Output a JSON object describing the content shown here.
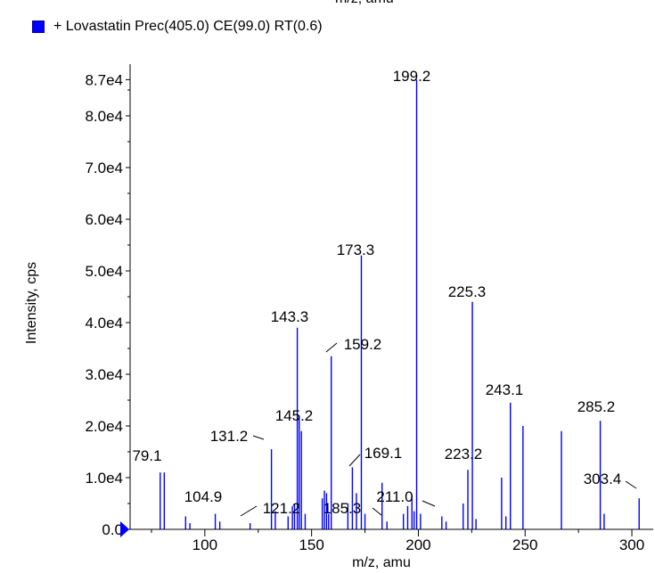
{
  "header_cut_label": "m/z, amu",
  "legend": {
    "label": "+ Lovastatin Prec(405.0) CE(99.0) RT(0.6)",
    "color": "#0000ff"
  },
  "chart_data": {
    "type": "bar",
    "title": "",
    "xlabel": "m/z, amu",
    "ylabel": "Intensity, cps",
    "xlim": [
      65,
      310
    ],
    "ylim": [
      0,
      90000
    ],
    "x_ticks": [
      100,
      150,
      200,
      250,
      300
    ],
    "y_tick_labels": [
      "0.0",
      "1.0e4",
      "2.0e4",
      "3.0e4",
      "4.0e4",
      "5.0e4",
      "6.0e4",
      "7.0e4",
      "8.0e4",
      "8.7e4"
    ],
    "y_tick_values": [
      0,
      10000,
      20000,
      30000,
      40000,
      50000,
      60000,
      70000,
      80000,
      87000
    ],
    "series": [
      {
        "color": "#0000ff",
        "peaks": [
          {
            "x": 79.1,
            "y": 11000
          },
          {
            "x": 81.0,
            "y": 11000
          },
          {
            "x": 91.0,
            "y": 2500
          },
          {
            "x": 93.0,
            "y": 1200
          },
          {
            "x": 104.9,
            "y": 3000
          },
          {
            "x": 107.0,
            "y": 1500
          },
          {
            "x": 121.2,
            "y": 1200
          },
          {
            "x": 131.2,
            "y": 15500
          },
          {
            "x": 133.0,
            "y": 3500
          },
          {
            "x": 139.0,
            "y": 2500
          },
          {
            "x": 141.0,
            "y": 4500
          },
          {
            "x": 142.0,
            "y": 5000
          },
          {
            "x": 143.3,
            "y": 39000
          },
          {
            "x": 144.2,
            "y": 22000
          },
          {
            "x": 145.2,
            "y": 19000
          },
          {
            "x": 147.0,
            "y": 3000
          },
          {
            "x": 155.0,
            "y": 6000
          },
          {
            "x": 156.0,
            "y": 7500
          },
          {
            "x": 157.0,
            "y": 7000
          },
          {
            "x": 158.0,
            "y": 3000
          },
          {
            "x": 159.2,
            "y": 33500
          },
          {
            "x": 167.0,
            "y": 5000
          },
          {
            "x": 169.1,
            "y": 12000
          },
          {
            "x": 171.0,
            "y": 7000
          },
          {
            "x": 173.3,
            "y": 53000
          },
          {
            "x": 175.0,
            "y": 3000
          },
          {
            "x": 183.0,
            "y": 9000
          },
          {
            "x": 185.3,
            "y": 1500
          },
          {
            "x": 193.0,
            "y": 3000
          },
          {
            "x": 195.0,
            "y": 4500
          },
          {
            "x": 197.0,
            "y": 6500
          },
          {
            "x": 198.0,
            "y": 3500
          },
          {
            "x": 199.2,
            "y": 87000
          },
          {
            "x": 201.0,
            "y": 3000
          },
          {
            "x": 211.0,
            "y": 2500
          },
          {
            "x": 213.0,
            "y": 1500
          },
          {
            "x": 221.0,
            "y": 5000
          },
          {
            "x": 223.2,
            "y": 11500
          },
          {
            "x": 225.3,
            "y": 44000
          },
          {
            "x": 227.0,
            "y": 2000
          },
          {
            "x": 239.0,
            "y": 10000
          },
          {
            "x": 241.0,
            "y": 2500
          },
          {
            "x": 243.1,
            "y": 24500
          },
          {
            "x": 249.0,
            "y": 20000
          },
          {
            "x": 267.0,
            "y": 19000
          },
          {
            "x": 285.2,
            "y": 21000
          },
          {
            "x": 287.0,
            "y": 3000
          },
          {
            "x": 303.4,
            "y": 6000
          }
        ]
      }
    ],
    "annotations": [
      {
        "label": "79.1",
        "x": 79.1
      },
      {
        "label": "104.9",
        "x": 104.9
      },
      {
        "label": "121.2",
        "x": 121.2
      },
      {
        "label": "131.2",
        "x": 131.2
      },
      {
        "label": "143.3",
        "x": 143.3
      },
      {
        "label": "145.2",
        "x": 145.2
      },
      {
        "label": "159.2",
        "x": 159.2
      },
      {
        "label": "169.1",
        "x": 169.1
      },
      {
        "label": "173.3",
        "x": 173.3
      },
      {
        "label": "185.3",
        "x": 185.3
      },
      {
        "label": "199.2",
        "x": 199.2
      },
      {
        "label": "211.0",
        "x": 211.0
      },
      {
        "label": "223.2",
        "x": 223.2
      },
      {
        "label": "225.3",
        "x": 225.3
      },
      {
        "label": "243.1",
        "x": 243.1
      },
      {
        "label": "285.2",
        "x": 285.2
      },
      {
        "label": "303.4",
        "x": 303.4
      }
    ],
    "grid": false,
    "legend_position": "top-left"
  }
}
